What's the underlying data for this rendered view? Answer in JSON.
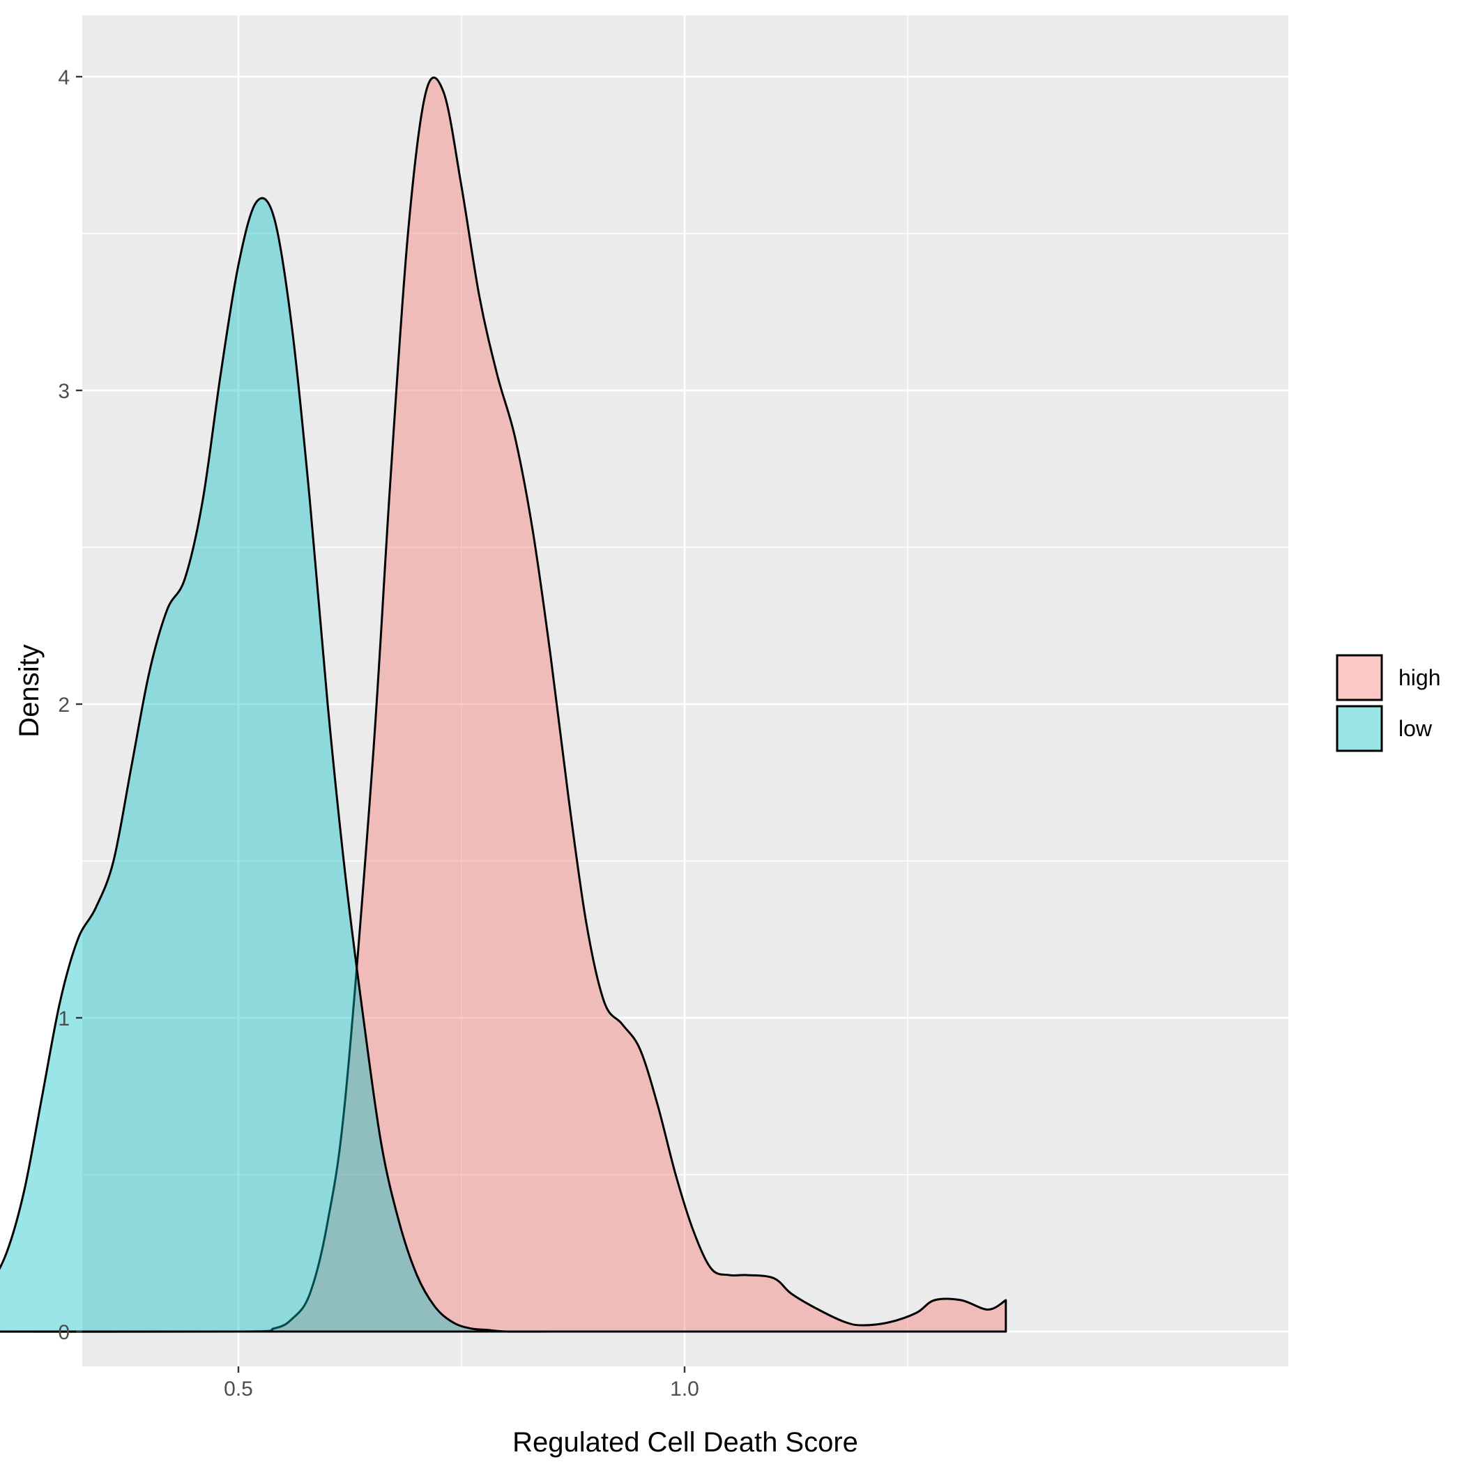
{
  "chart_data": {
    "type": "area",
    "xlabel": "Regulated Cell Death Score",
    "ylabel": "Density",
    "xlim": [
      0.13,
      1.48
    ],
    "ylim": [
      -0.2,
      4.2
    ],
    "x_ticks": [
      0.5,
      1.0
    ],
    "x_tick_labels": [
      "0.5",
      "1.0"
    ],
    "x_minor_gridlines": [
      0.25,
      0.75,
      1.25
    ],
    "y_ticks": [
      0,
      1,
      2,
      3,
      4
    ],
    "y_tick_labels": [
      "0",
      "1",
      "2",
      "3",
      "4"
    ],
    "y_minor_gridlines": [
      0.5,
      1.5,
      2.5,
      3.5
    ],
    "grid": true,
    "legend_position": "right",
    "series": [
      {
        "name": "high",
        "color": "#F8766D",
        "x": [
          0.195,
          0.5,
          0.54,
          0.56,
          0.58,
          0.6,
          0.62,
          0.65,
          0.67,
          0.69,
          0.71,
          0.73,
          0.75,
          0.77,
          0.79,
          0.81,
          0.83,
          0.85,
          0.87,
          0.89,
          0.91,
          0.93,
          0.95,
          0.97,
          0.99,
          1.01,
          1.03,
          1.05,
          1.07,
          1.1,
          1.12,
          1.15,
          1.18,
          1.2,
          1.23,
          1.26,
          1.28,
          1.31,
          1.34,
          1.36
        ],
        "y": [
          0.0,
          0.0,
          0.01,
          0.04,
          0.12,
          0.35,
          0.75,
          1.8,
          2.7,
          3.5,
          3.95,
          3.95,
          3.65,
          3.3,
          3.05,
          2.85,
          2.55,
          2.15,
          1.7,
          1.3,
          1.05,
          0.98,
          0.9,
          0.72,
          0.5,
          0.32,
          0.2,
          0.18,
          0.18,
          0.17,
          0.12,
          0.07,
          0.03,
          0.02,
          0.03,
          0.06,
          0.1,
          0.1,
          0.07,
          0.1
        ]
      },
      {
        "name": "low",
        "color": "#00BFC4",
        "x": [
          0.195,
          0.22,
          0.24,
          0.26,
          0.28,
          0.3,
          0.32,
          0.34,
          0.36,
          0.38,
          0.4,
          0.42,
          0.44,
          0.46,
          0.48,
          0.5,
          0.52,
          0.54,
          0.56,
          0.58,
          0.6,
          0.62,
          0.64,
          0.66,
          0.68,
          0.7,
          0.72,
          0.74,
          0.76,
          0.78,
          0.8,
          0.85,
          0.9,
          1.0,
          1.36
        ],
        "y": [
          0.1,
          0.15,
          0.25,
          0.45,
          0.75,
          1.05,
          1.25,
          1.35,
          1.5,
          1.8,
          2.1,
          2.3,
          2.4,
          2.65,
          3.05,
          3.4,
          3.6,
          3.55,
          3.2,
          2.65,
          2.0,
          1.45,
          1.0,
          0.6,
          0.35,
          0.18,
          0.08,
          0.03,
          0.01,
          0.005,
          0.0,
          0.0,
          0.0,
          0.0,
          0.0
        ]
      }
    ]
  }
}
